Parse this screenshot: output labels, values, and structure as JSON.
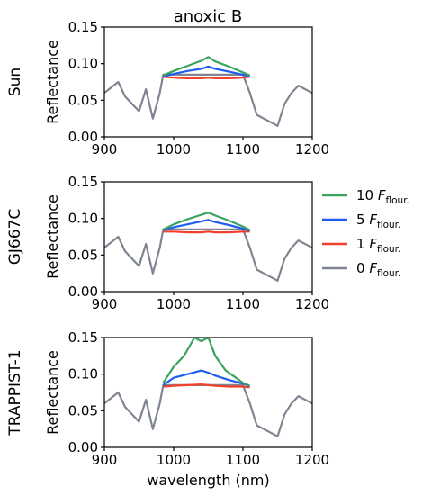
{
  "figure": {
    "title": "anoxic B",
    "legend": [
      {
        "mult": "10",
        "symbol": "F",
        "subscript": "flour.",
        "color": "#3aa35d"
      },
      {
        "mult": "5",
        "symbol": "F",
        "subscript": "flour.",
        "color": "#1f5cf0"
      },
      {
        "mult": "1",
        "symbol": "F",
        "subscript": "flour.",
        "color": "#f0402c"
      },
      {
        "mult": "0",
        "symbol": "F",
        "subscript": "flour.",
        "color": "#7f8591"
      }
    ]
  },
  "chart_data": [
    {
      "type": "line",
      "row_label": "Sun",
      "xlabel": "",
      "ylabel": "Reflectance",
      "xlim": [
        900,
        1200
      ],
      "ylim": [
        0.0,
        0.15
      ],
      "xticks": [
        "900",
        "1000",
        "1100",
        "1200"
      ],
      "yticks": [
        "0.00",
        "0.05",
        "0.10",
        "0.15"
      ],
      "series": [
        {
          "name": "10 F_flour.",
          "color": "#3aa35d",
          "x": [
            985,
            1000,
            1020,
            1040,
            1050,
            1060,
            1080,
            1100,
            1110
          ],
          "y": [
            0.084,
            0.09,
            0.097,
            0.104,
            0.109,
            0.103,
            0.096,
            0.088,
            0.084
          ]
        },
        {
          "name": "5 F_flour.",
          "color": "#1f5cf0",
          "x": [
            985,
            1000,
            1020,
            1040,
            1050,
            1060,
            1080,
            1100,
            1110
          ],
          "y": [
            0.083,
            0.086,
            0.09,
            0.093,
            0.096,
            0.093,
            0.089,
            0.085,
            0.083
          ]
        },
        {
          "name": "1 F_flour.",
          "color": "#f0402c",
          "x": [
            985,
            1000,
            1020,
            1040,
            1050,
            1060,
            1080,
            1100,
            1110
          ],
          "y": [
            0.082,
            0.081,
            0.08,
            0.08,
            0.081,
            0.08,
            0.08,
            0.081,
            0.082
          ]
        },
        {
          "name": "0 F_flour.",
          "color": "#7f8591",
          "x": [
            900,
            920,
            930,
            950,
            960,
            970,
            980,
            985,
            1000,
            1050,
            1100,
            1110,
            1120,
            1140,
            1150,
            1160,
            1170,
            1180,
            1200
          ],
          "y": [
            0.06,
            0.075,
            0.055,
            0.035,
            0.065,
            0.025,
            0.06,
            0.085,
            0.085,
            0.085,
            0.085,
            0.06,
            0.03,
            0.02,
            0.015,
            0.045,
            0.06,
            0.07,
            0.06
          ]
        }
      ]
    },
    {
      "type": "line",
      "row_label": "GJ667C",
      "xlabel": "",
      "ylabel": "Reflectance",
      "xlim": [
        900,
        1200
      ],
      "ylim": [
        0.0,
        0.15
      ],
      "xticks": [
        "900",
        "1000",
        "1100",
        "1200"
      ],
      "yticks": [
        "0.00",
        "0.05",
        "0.10",
        "0.15"
      ],
      "series": [
        {
          "name": "10 F_flour.",
          "color": "#3aa35d",
          "x": [
            985,
            1000,
            1020,
            1040,
            1050,
            1060,
            1080,
            1100,
            1110
          ],
          "y": [
            0.085,
            0.092,
            0.099,
            0.105,
            0.108,
            0.104,
            0.097,
            0.089,
            0.084
          ]
        },
        {
          "name": "5 F_flour.",
          "color": "#1f5cf0",
          "x": [
            985,
            1000,
            1020,
            1040,
            1050,
            1060,
            1080,
            1100,
            1110
          ],
          "y": [
            0.084,
            0.088,
            0.092,
            0.096,
            0.098,
            0.095,
            0.091,
            0.086,
            0.083
          ]
        },
        {
          "name": "1 F_flour.",
          "color": "#f0402c",
          "x": [
            985,
            1000,
            1020,
            1040,
            1050,
            1060,
            1080,
            1100,
            1110
          ],
          "y": [
            0.082,
            0.082,
            0.081,
            0.081,
            0.082,
            0.081,
            0.081,
            0.082,
            0.082
          ]
        },
        {
          "name": "0 F_flour.",
          "color": "#7f8591",
          "x": [
            900,
            920,
            930,
            950,
            960,
            970,
            980,
            985,
            1000,
            1050,
            1100,
            1110,
            1120,
            1140,
            1150,
            1160,
            1170,
            1180,
            1200
          ],
          "y": [
            0.06,
            0.075,
            0.055,
            0.035,
            0.065,
            0.025,
            0.06,
            0.085,
            0.085,
            0.085,
            0.085,
            0.06,
            0.03,
            0.02,
            0.015,
            0.045,
            0.06,
            0.07,
            0.06
          ]
        }
      ]
    },
    {
      "type": "line",
      "row_label": "TRAPPIST-1",
      "xlabel": "wavelength (nm)",
      "ylabel": "Reflectance",
      "xlim": [
        900,
        1200
      ],
      "ylim": [
        0.0,
        0.15
      ],
      "xticks": [
        "900",
        "1000",
        "1100",
        "1200"
      ],
      "yticks": [
        "0.00",
        "0.05",
        "0.10",
        "0.15"
      ],
      "series": [
        {
          "name": "10 F_flour.",
          "color": "#3aa35d",
          "x": [
            985,
            1000,
            1015,
            1030,
            1040,
            1050,
            1060,
            1075,
            1090,
            1100,
            1110
          ],
          "y": [
            0.088,
            0.11,
            0.125,
            0.15,
            0.145,
            0.15,
            0.125,
            0.105,
            0.095,
            0.088,
            0.084
          ]
        },
        {
          "name": "5 F_flour.",
          "color": "#1f5cf0",
          "x": [
            985,
            1000,
            1020,
            1040,
            1050,
            1060,
            1080,
            1100,
            1110
          ],
          "y": [
            0.085,
            0.095,
            0.1,
            0.105,
            0.102,
            0.098,
            0.092,
            0.087,
            0.084
          ]
        },
        {
          "name": "1 F_flour.",
          "color": "#f0402c",
          "x": [
            985,
            1000,
            1020,
            1040,
            1050,
            1060,
            1080,
            1100,
            1110
          ],
          "y": [
            0.083,
            0.084,
            0.085,
            0.086,
            0.085,
            0.084,
            0.083,
            0.083,
            0.082
          ]
        },
        {
          "name": "0 F_flour.",
          "color": "#7f8591",
          "x": [
            900,
            920,
            930,
            950,
            960,
            970,
            980,
            985,
            1000,
            1050,
            1100,
            1110,
            1120,
            1140,
            1150,
            1160,
            1170,
            1180,
            1200
          ],
          "y": [
            0.06,
            0.075,
            0.055,
            0.035,
            0.065,
            0.025,
            0.06,
            0.085,
            0.085,
            0.085,
            0.085,
            0.06,
            0.03,
            0.02,
            0.015,
            0.045,
            0.06,
            0.07,
            0.06
          ]
        }
      ]
    }
  ]
}
